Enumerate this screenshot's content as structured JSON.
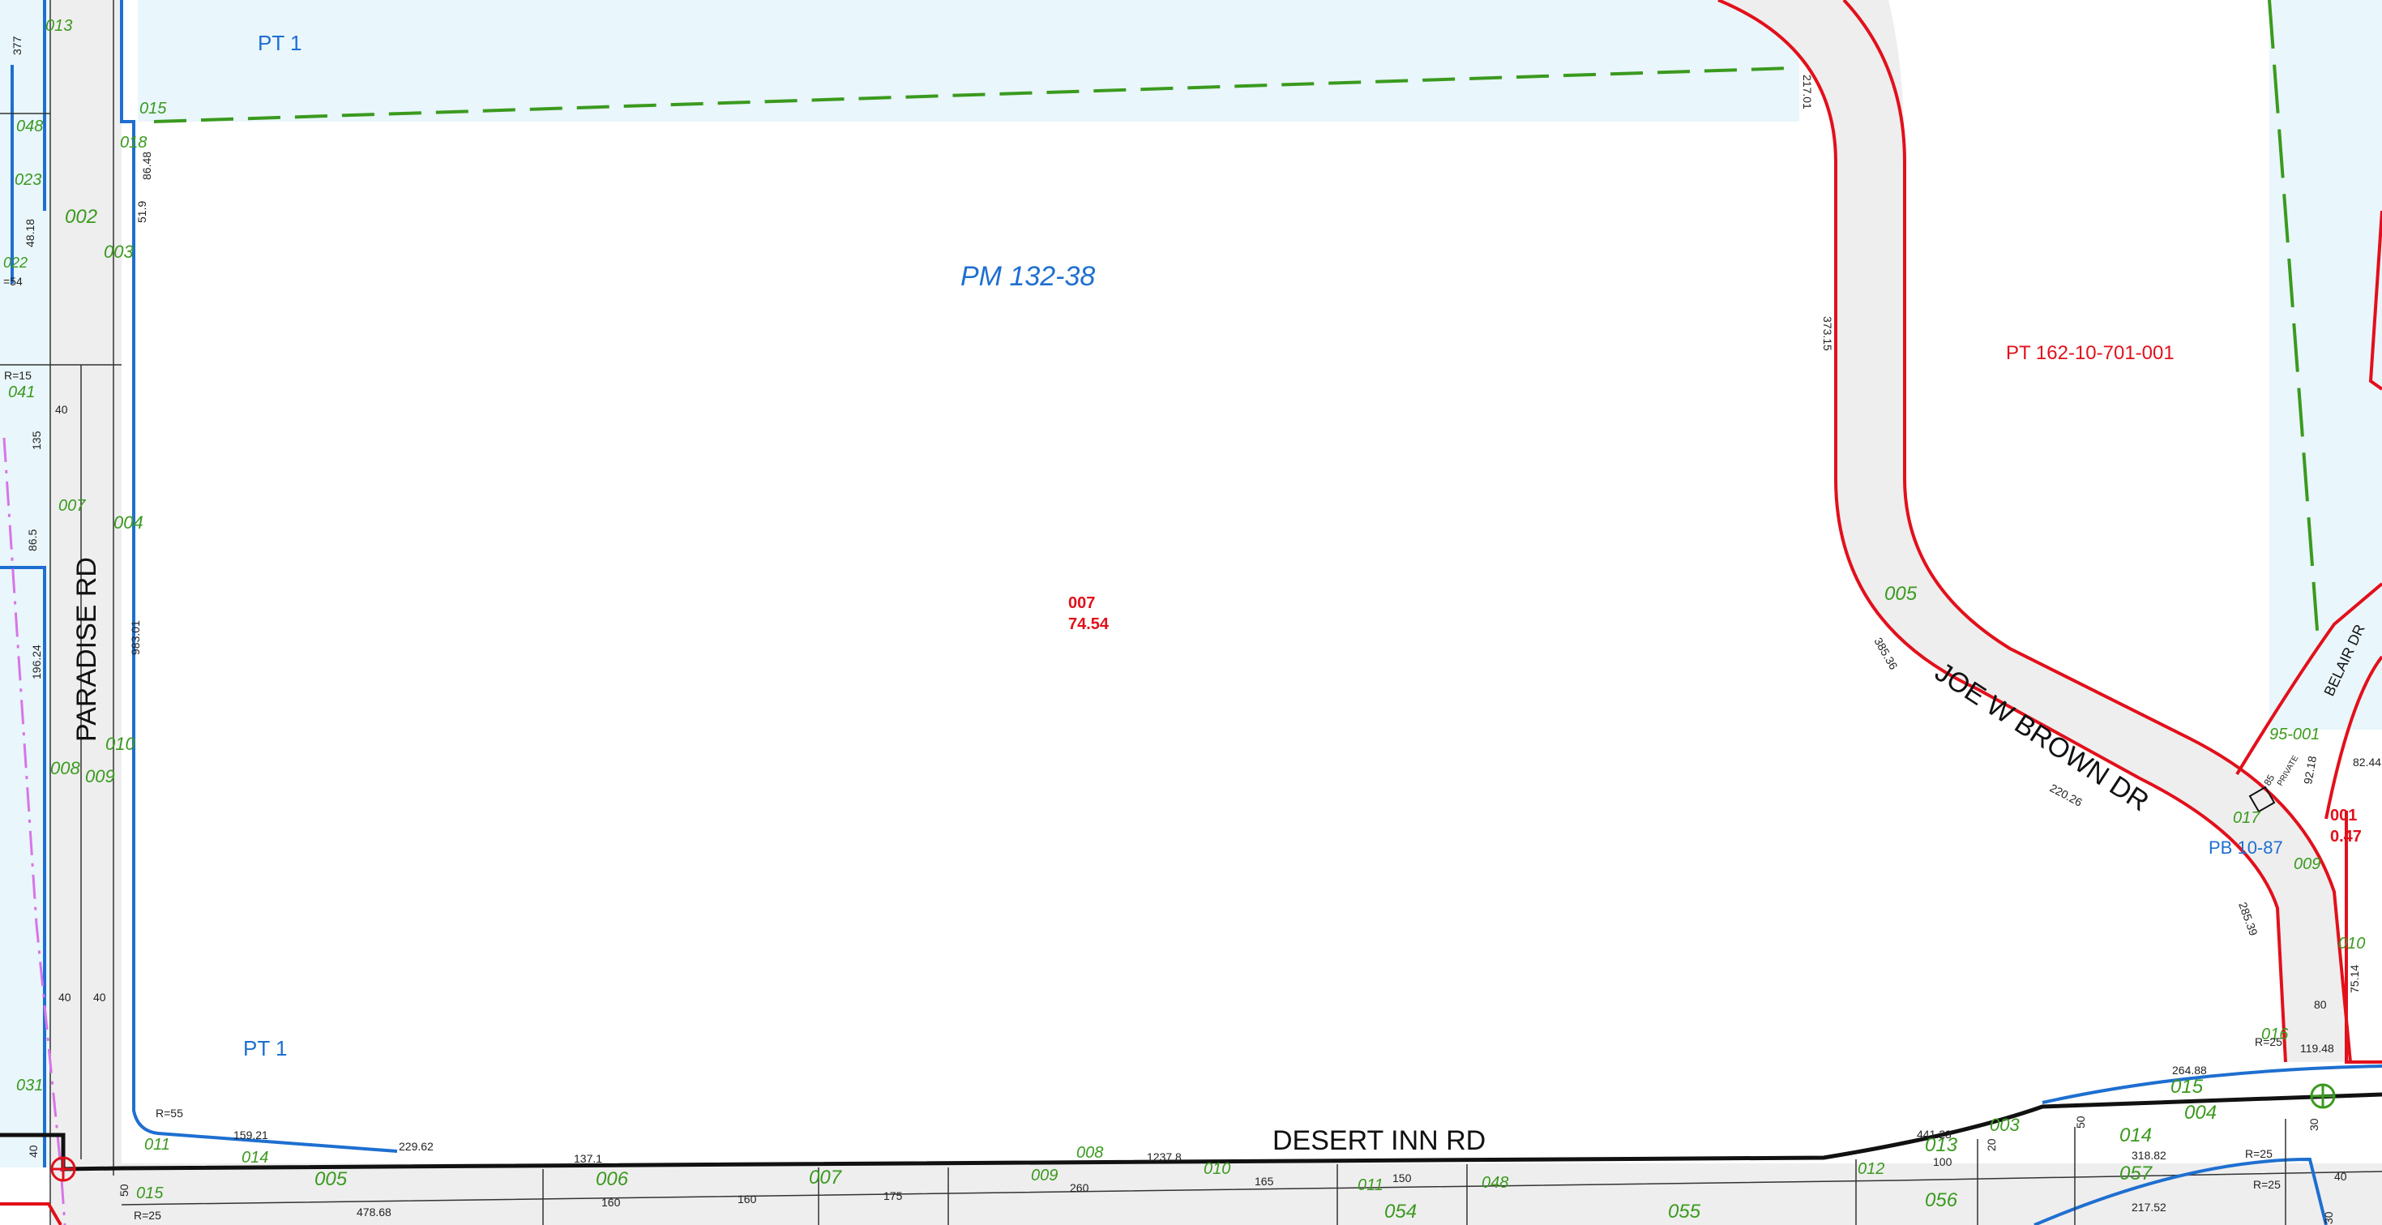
{
  "map": {
    "colors": {
      "parcel_fill": "#ffffff",
      "adjacent_fill": "#e9f6fb",
      "road_fill": "#eeeeee",
      "parcel_line_blue": "#1e6fd0",
      "road_line_red": "#e2101b",
      "easement_green": "#3a9a1e",
      "boundary_black": "#111111",
      "section_magenta": "#d874e8"
    },
    "streets": {
      "paradise": "PARADISE RD",
      "desert_inn": "DESERT INN RD",
      "joe_w_brown": "JOE W BROWN DR",
      "belair": "BELAIR DR"
    },
    "plats": {
      "pt1_top": "PT 1",
      "pt1_bottom": "PT 1",
      "pm": "PM 132-38",
      "pt_red": "PT 162-10-701-001",
      "pb": "PB 10-87"
    },
    "parcels": {
      "main_id": "007",
      "main_acres": "74.54",
      "east_id": "001",
      "east_acres": "0.47",
      "green_005": "005",
      "green_95001": "95-001",
      "green_017": "017",
      "green_009": "009",
      "green_016": "016",
      "green_015_e": "015",
      "green_004_e": "004",
      "green_014_e": "014",
      "green_057": "057",
      "green_013_e": "013",
      "green_003_e": "003",
      "green_012": "012",
      "green_056": "056",
      "green_055": "055",
      "green_054": "054",
      "green_048": "048",
      "green_011_s": "011",
      "green_010_s": "010",
      "green_008_s": "008",
      "green_009_s": "009",
      "green_007_s": "007",
      "green_006_s": "006",
      "green_005_s": "005",
      "green_014_s": "014",
      "green_011_w": "011",
      "green_015_w": "015",
      "green_031": "031",
      "green_008_w": "008",
      "green_009_w": "009",
      "green_010_w": "010",
      "green_004_w": "004",
      "green_007_w": "007",
      "green_041": "041",
      "green_002": "002",
      "green_003_w": "003",
      "green_023": "023",
      "green_048_w": "048",
      "green_018": "018",
      "green_015_t": "015",
      "green_013_t": "013",
      "green_010_e": "010",
      "green_022": "022"
    },
    "dims": {
      "d_217_01": "217.01",
      "d_373_15": "373.15",
      "d_385_36": "385.36",
      "d_220_26": "220.26",
      "d_285_39": "285.39",
      "d_92_18": "92.18",
      "d_82_44": "82.44",
      "d_75_14": "75.14",
      "d_80": "80",
      "d_119_48": "119.48",
      "d_r25_a": "R=25",
      "d_264_88": "264.88",
      "d_441_23": "441.23",
      "d_1237_8": "1237.8",
      "d_137_1": "137.1",
      "d_229_62": "229.62",
      "d_159_21": "159.21",
      "d_r55": "R=55",
      "d_983_01": "983.01",
      "d_86_48": "86.48",
      "d_51_9": "51.9",
      "d_196_24": "196.24",
      "d_135": "135",
      "d_86_5": "86.5",
      "d_40_a": "40",
      "d_40_b": "40",
      "d_40_c": "40",
      "d_40_d": "40",
      "d_r15": "R=15",
      "d_377": "377",
      "d_48_18": "48.18",
      "d_54": "=54",
      "d_478_68": "478.68",
      "d_r25_b": "R=25",
      "d_160_a": "160",
      "d_160_b": "160",
      "d_175": "175",
      "d_260": "260",
      "d_165": "165",
      "d_150": "150",
      "d_100": "100",
      "d_20": "20",
      "d_50_a": "50",
      "d_50_b": "50",
      "d_318_82": "318.82",
      "d_r25_c": "R=25",
      "d_r25_d": "R=25",
      "d_217_52": "217.52",
      "d_30_a": "30",
      "d_30_b": "30",
      "d_40_e": "40",
      "d_private": "PRIVATE",
      "d_85": "85"
    }
  }
}
